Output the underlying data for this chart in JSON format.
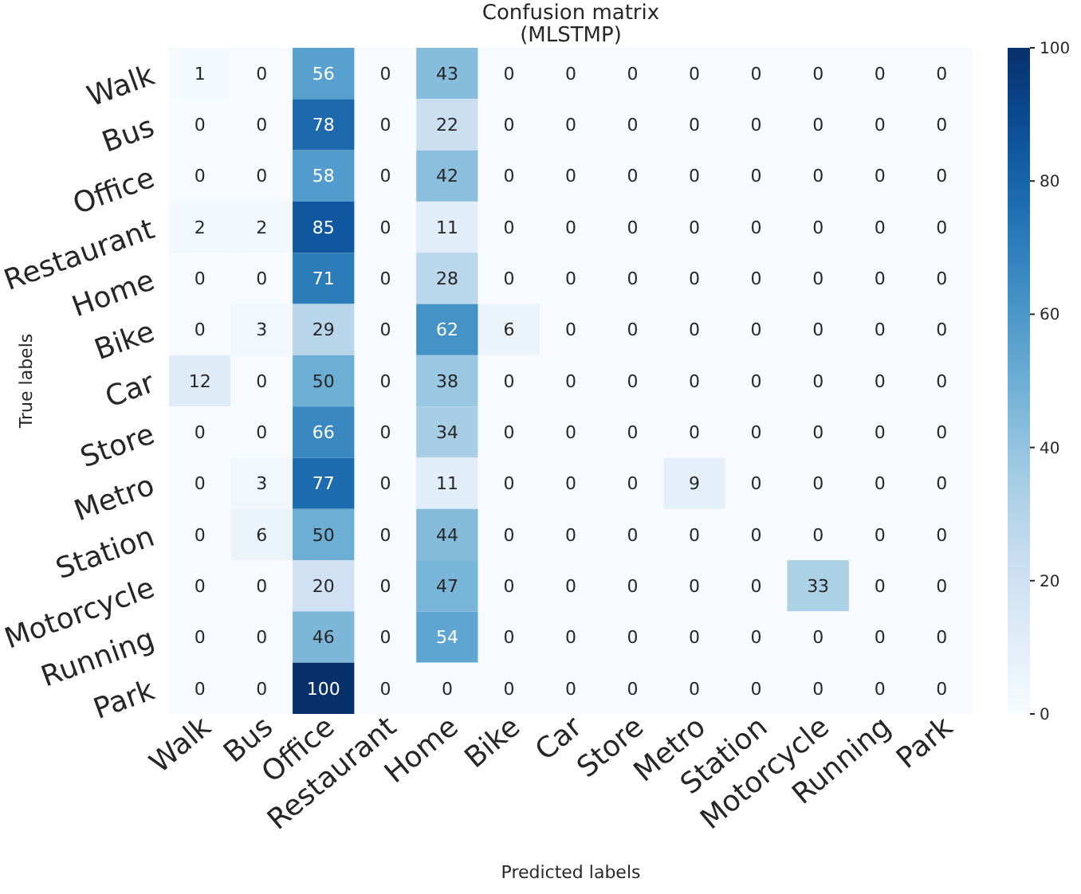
{
  "chart_data": {
    "type": "heatmap",
    "title": "Confusion matrix",
    "subtitle": "(MLSTMP)",
    "xlabel": "Predicted labels",
    "ylabel": "True labels",
    "categories": [
      "Walk",
      "Bus",
      "Office",
      "Restaurant",
      "Home",
      "Bike",
      "Car",
      "Store",
      "Metro",
      "Station",
      "Motorcycle",
      "Running",
      "Park"
    ],
    "y_categories": [
      "Walk",
      "Bus",
      "Office",
      "Restaurant",
      "Home",
      "Bike",
      "Car",
      "Store",
      "Metro",
      "Station",
      "Motorcycle",
      "Running",
      "Park"
    ],
    "cells": [
      [
        1,
        0,
        56,
        0,
        43,
        0,
        0,
        0,
        0,
        0,
        0,
        0,
        0
      ],
      [
        0,
        0,
        78,
        0,
        22,
        0,
        0,
        0,
        0,
        0,
        0,
        0,
        0
      ],
      [
        0,
        0,
        58,
        0,
        42,
        0,
        0,
        0,
        0,
        0,
        0,
        0,
        0
      ],
      [
        2,
        2,
        85,
        0,
        11,
        0,
        0,
        0,
        0,
        0,
        0,
        0,
        0
      ],
      [
        0,
        0,
        71,
        0,
        28,
        0,
        0,
        0,
        0,
        0,
        0,
        0,
        0
      ],
      [
        0,
        3,
        29,
        0,
        62,
        6,
        0,
        0,
        0,
        0,
        0,
        0,
        0
      ],
      [
        12,
        0,
        50,
        0,
        38,
        0,
        0,
        0,
        0,
        0,
        0,
        0,
        0
      ],
      [
        0,
        0,
        66,
        0,
        34,
        0,
        0,
        0,
        0,
        0,
        0,
        0,
        0
      ],
      [
        0,
        3,
        77,
        0,
        11,
        0,
        0,
        0,
        9,
        0,
        0,
        0,
        0
      ],
      [
        0,
        6,
        50,
        0,
        44,
        0,
        0,
        0,
        0,
        0,
        0,
        0,
        0
      ],
      [
        0,
        0,
        20,
        0,
        47,
        0,
        0,
        0,
        0,
        0,
        33,
        0,
        0
      ],
      [
        0,
        0,
        46,
        0,
        54,
        0,
        0,
        0,
        0,
        0,
        0,
        0,
        0
      ],
      [
        0,
        0,
        100,
        0,
        0,
        0,
        0,
        0,
        0,
        0,
        0,
        0,
        0
      ]
    ],
    "clim": [
      0,
      100
    ],
    "cticks": [
      0,
      20,
      40,
      60,
      80,
      100
    ],
    "data_labels": true
  }
}
